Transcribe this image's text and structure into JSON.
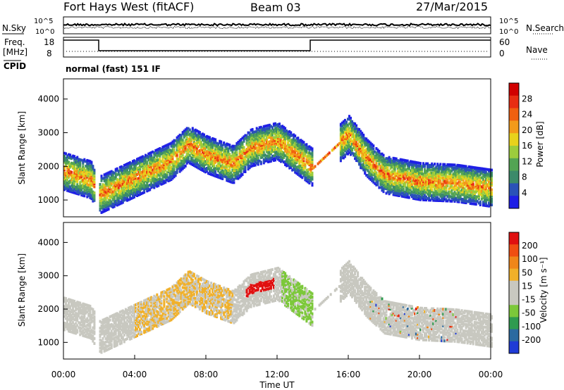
{
  "header": {
    "station": "Fort Hays West (fitACF)",
    "beam": "Beam 03",
    "date": "27/Mar/2015"
  },
  "top_panels": {
    "nsky_label": "N.Sky",
    "nsky_ticks": [
      "10^5",
      "10^0"
    ],
    "nsearch_label": "N.Search",
    "nsearch_ticks": [
      "10^5",
      "10^0"
    ],
    "freq_label": "Freq.",
    "freq_unit": "[MHz]",
    "freq_ticks": [
      "18",
      "8"
    ],
    "nave_label": "Nave",
    "nave_ticks": [
      "60",
      "0"
    ],
    "cpid_label": "CPID",
    "cpid_text": "normal (fast) 151 IF"
  },
  "chart_data": [
    {
      "type": "heatmap",
      "name": "power",
      "ylabel": "Slant Range [km]",
      "yticks": [
        "4000",
        "3000",
        "2000",
        "1000"
      ],
      "ylim": [
        500,
        4600
      ],
      "colorbar": {
        "label": "Power [dB]",
        "ticks": [
          "28",
          "24",
          "20",
          "16",
          "12",
          "8",
          "4"
        ],
        "colors": [
          "#1f1fe6",
          "#2a52b8",
          "#3b8a6a",
          "#53a453",
          "#9ccc3c",
          "#e8d21c",
          "#f39a1a",
          "#f06010",
          "#e82d12",
          "#d10000"
        ]
      },
      "band_ridge_km": [
        [
          0.0,
          1900
        ],
        [
          1.5,
          1650
        ],
        [
          2.0,
          1200
        ],
        [
          4.0,
          1700
        ],
        [
          6.0,
          2200
        ],
        [
          7.0,
          2700
        ],
        [
          8.0,
          2400
        ],
        [
          9.5,
          2100
        ],
        [
          10.5,
          2600
        ],
        [
          12.0,
          2800
        ],
        [
          14.0,
          2000
        ],
        [
          16.0,
          3000
        ],
        [
          17.0,
          2300
        ],
        [
          18.0,
          1800
        ],
        [
          20.0,
          1600
        ],
        [
          22.0,
          1550
        ],
        [
          24.0,
          1400
        ]
      ]
    },
    {
      "type": "heatmap",
      "name": "velocity",
      "ylabel": "Slant Range [km]",
      "yticks": [
        "4000",
        "3000",
        "2000",
        "1000"
      ],
      "ylim": [
        500,
        4600
      ],
      "colorbar": {
        "label": "Velocity [m s⁻¹]",
        "ticks": [
          "200",
          "100",
          "50",
          "15",
          "-15",
          "-50",
          "-100",
          "-200"
        ],
        "colors": [
          "#1f3bd6",
          "#2b6aa0",
          "#2f9b50",
          "#7cc83a",
          "#c8c8c0",
          "#c8c8c0",
          "#f0b02a",
          "#f0861a",
          "#f04e12",
          "#e01010"
        ]
      }
    }
  ],
  "x_axis": {
    "ticks": [
      "00:00",
      "04:00",
      "08:00",
      "12:00",
      "16:00",
      "20:00",
      "00:00"
    ],
    "label": "Time UT"
  }
}
